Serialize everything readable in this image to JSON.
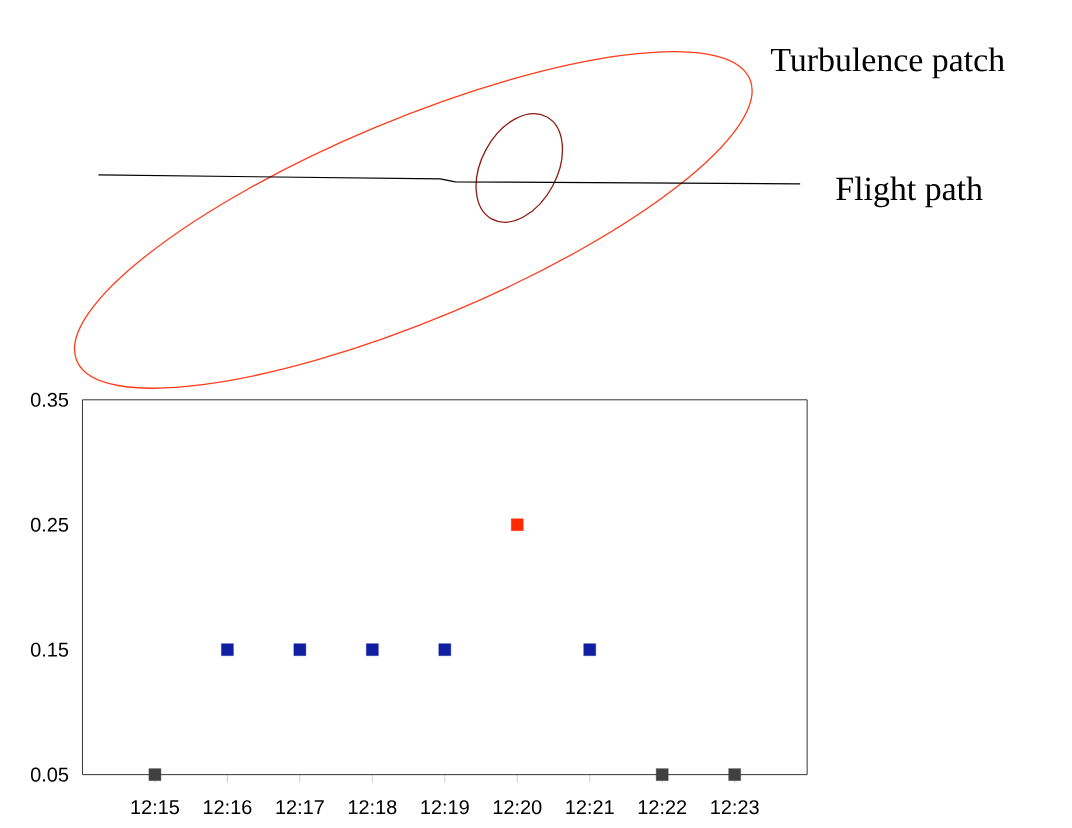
{
  "chart_data": {
    "type": "scatter",
    "categories": [
      "12:15",
      "12:16",
      "12:17",
      "12:18",
      "12:19",
      "12:20",
      "12:21",
      "12:22",
      "12:23"
    ],
    "values": [
      0.05,
      0.15,
      0.15,
      0.15,
      0.15,
      0.25,
      0.15,
      0.05,
      0.05
    ],
    "colors": [
      "#404040",
      "#0f1fa0",
      "#0f1fa0",
      "#0f1fa0",
      "#0f1fa0",
      "#ff2a00",
      "#0f1fa0",
      "#404040",
      "#404040"
    ],
    "marker": "square",
    "ylim": [
      0.05,
      0.35
    ],
    "yticks": [
      0.05,
      0.15,
      0.25,
      0.35
    ],
    "annotations": [
      "Turbulence patch",
      "Flight path"
    ]
  }
}
